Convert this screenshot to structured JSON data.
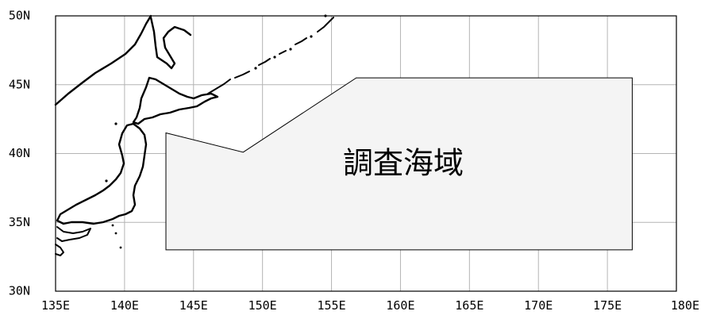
{
  "map": {
    "lon_range": [
      135,
      180
    ],
    "lat_range": [
      30,
      50
    ],
    "grid": true,
    "lon_ticks": [
      {
        "value": 135,
        "label": "135E"
      },
      {
        "value": 140,
        "label": "140E"
      },
      {
        "value": 145,
        "label": "145E"
      },
      {
        "value": 150,
        "label": "150E"
      },
      {
        "value": 155,
        "label": "155E"
      },
      {
        "value": 160,
        "label": "160E"
      },
      {
        "value": 165,
        "label": "165E"
      },
      {
        "value": 170,
        "label": "170E"
      },
      {
        "value": 175,
        "label": "175E"
      },
      {
        "value": 180,
        "label": "180E"
      }
    ],
    "lat_ticks": [
      {
        "value": 50,
        "label": "50N"
      },
      {
        "value": 45,
        "label": "45N"
      },
      {
        "value": 40,
        "label": "40N"
      },
      {
        "value": 35,
        "label": "35N"
      },
      {
        "value": 30,
        "label": "30N"
      }
    ],
    "survey_area": {
      "label": "調査海域",
      "polygon": [
        [
          143.0,
          41.5
        ],
        [
          148.6,
          40.1
        ],
        [
          156.8,
          45.5
        ],
        [
          176.8,
          45.5
        ],
        [
          176.8,
          33.0
        ],
        [
          143.0,
          33.0
        ]
      ]
    },
    "colors": {
      "grid": "#b4b4b4",
      "coastline": "#000000",
      "survey_fill": "#f4f4f4"
    }
  }
}
